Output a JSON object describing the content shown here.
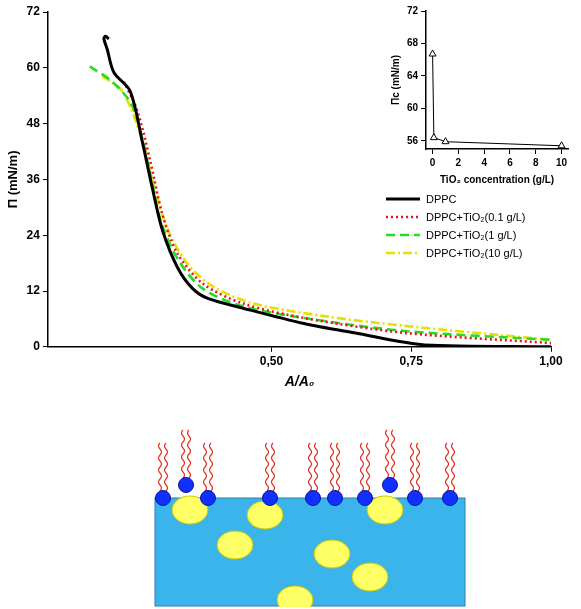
{
  "chart_data": [
    {
      "type": "line",
      "x_label": "A/A₀",
      "y_label": "Π (mN/m)",
      "xlim": [
        0.1,
        1.0
      ],
      "xticks": [
        {
          "value": 0.5,
          "label": "0,50"
        },
        {
          "value": 0.75,
          "label": "0,75"
        },
        {
          "value": 1.0,
          "label": "1,00"
        }
      ],
      "ylim": [
        0,
        72
      ],
      "yticks": [
        0,
        12,
        24,
        36,
        48,
        60,
        72
      ],
      "grid": false,
      "legend": "center right",
      "series": [
        {
          "name": "DPPC",
          "color": "#000000",
          "line_style": "solid",
          "x": [
            0.209,
            0.203,
            0.2,
            0.206,
            0.218,
            0.247,
            0.269,
            0.287,
            0.305,
            0.332,
            0.359,
            0.386,
            0.449,
            0.558,
            0.648,
            0.774,
            1.0
          ],
          "values": [
            66.2,
            66.8,
            66.3,
            64,
            59,
            55,
            44,
            34,
            25,
            17,
            12.5,
            10.4,
            8.3,
            5,
            3,
            0.4,
            0
          ]
        },
        {
          "name": "DPPC+TiO₂(0.1 g/L)",
          "color": "#e8141c",
          "line_style": "dotted",
          "x": [
            0.236,
            0.26,
            0.283,
            0.305,
            0.332,
            0.377,
            0.449,
            0.558,
            0.738,
            1.0
          ],
          "values": [
            57,
            50.7,
            40,
            28.4,
            20,
            13.6,
            9.3,
            6.2,
            3,
            0.8
          ]
        },
        {
          "name": "DPPC+TiO₂(1 g/L)",
          "color": "#22dd22",
          "line_style": "dashed",
          "x": [
            0.175,
            0.215,
            0.251,
            0.278,
            0.301,
            0.332,
            0.377,
            0.449,
            0.558,
            0.738,
            1.0
          ],
          "values": [
            60.3,
            57,
            51.8,
            40,
            27.4,
            18.9,
            12.5,
            8.7,
            6.2,
            3.4,
            1.5
          ]
        },
        {
          "name": "DPPC+TiO₂(10 g/L)",
          "color": "#e6e000",
          "line_style": "dashdot",
          "x": [
            0.197,
            0.233,
            0.269,
            0.287,
            0.314,
            0.35,
            0.395,
            0.468,
            0.594,
            0.738,
            1.0
          ],
          "values": [
            58.2,
            55,
            44.4,
            35.9,
            25.3,
            17.8,
            13,
            9.3,
            6.6,
            4.5,
            1.5
          ]
        }
      ]
    },
    {
      "type": "scatter",
      "x_label": "TiO₂ concentration (g/L)",
      "y_label": "Πc (mN/m)",
      "x": [
        0,
        0.1,
        1,
        10
      ],
      "values": [
        66.7,
        56.4,
        55.9,
        55.4
      ],
      "color": "#000000",
      "marker": "triangle",
      "line_style": "solid",
      "xlim": [
        -0.5,
        10.5
      ],
      "xticks": [
        0,
        2,
        4,
        6,
        8,
        10
      ],
      "ylim": [
        55,
        72
      ],
      "yticks": [
        56,
        60,
        64,
        68,
        72
      ],
      "grid": false
    }
  ]
}
